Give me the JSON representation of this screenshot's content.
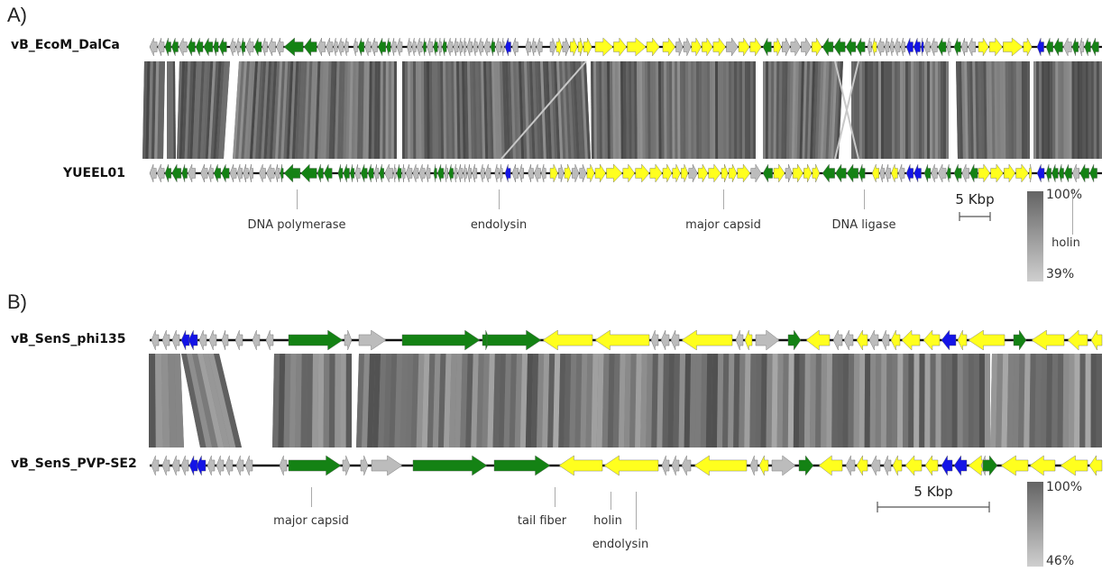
{
  "colors": {
    "green": "#148214",
    "yellow": "#ffff1e",
    "blue": "#1414e6",
    "gray": "#bcbcbc",
    "backbone": "#111111",
    "identity_high": "#646464",
    "identity_low": "#cfcfcf"
  },
  "panel_a": {
    "letter": "A)",
    "top_genome": "vB_EcoM_DalCa",
    "bottom_genome": "YUEEL01",
    "annotations": [
      "DNA polymerase",
      "endolysin",
      "major capsid",
      "DNA ligase",
      "holin"
    ],
    "scale_label": "5 Kbp",
    "legend_max": "100%",
    "legend_min": "39%"
  },
  "panel_b": {
    "letter": "B)",
    "top_genome": "vB_SenS_phi135",
    "bottom_genome": "vB_SenS_PVP-SE2",
    "annotations": [
      "major capsid",
      "tail fiber",
      "holin",
      "endolysin"
    ],
    "scale_label": "5 Kbp",
    "legend_max": "100%",
    "legend_min": "46%"
  }
}
